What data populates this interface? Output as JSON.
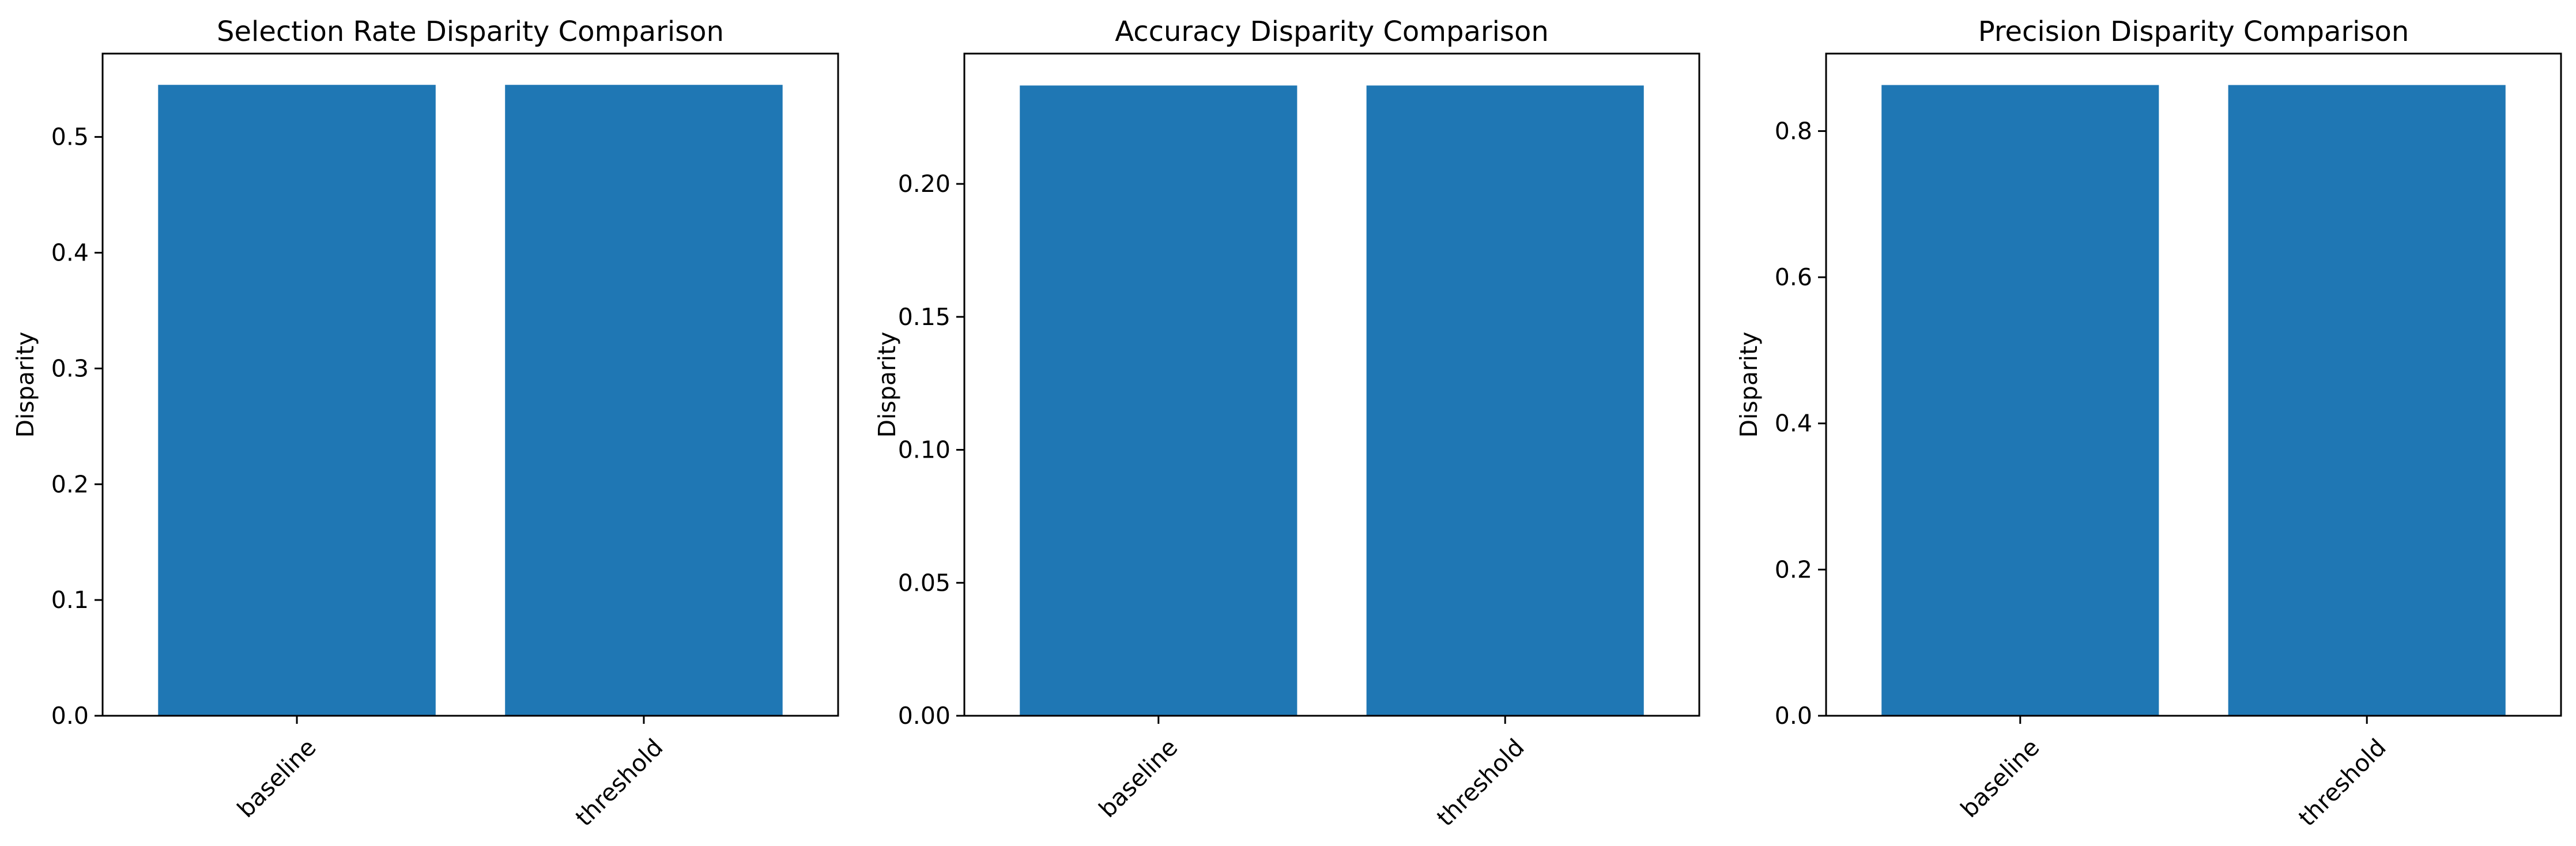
{
  "chart_data": [
    {
      "type": "bar",
      "title": "Selection Rate Disparity Comparison",
      "xlabel": "",
      "ylabel": "Disparity",
      "categories": [
        "baseline",
        "threshold"
      ],
      "values": [
        0.545,
        0.545
      ],
      "ylim": [
        0,
        0.572
      ],
      "yticks": [
        0.0,
        0.1,
        0.2,
        0.3,
        0.4,
        0.5
      ],
      "ytick_decimals": 1,
      "bar_color": "#1f77b4",
      "grid": false
    },
    {
      "type": "bar",
      "title": "Accuracy Disparity Comparison",
      "xlabel": "",
      "ylabel": "Disparity",
      "categories": [
        "baseline",
        "threshold"
      ],
      "values": [
        0.237,
        0.237
      ],
      "ylim": [
        0,
        0.249
      ],
      "yticks": [
        0.0,
        0.05,
        0.1,
        0.15,
        0.2
      ],
      "ytick_decimals": 2,
      "bar_color": "#1f77b4",
      "grid": false
    },
    {
      "type": "bar",
      "title": "Precision Disparity Comparison",
      "xlabel": "",
      "ylabel": "Disparity",
      "categories": [
        "baseline",
        "threshold"
      ],
      "values": [
        0.863,
        0.863
      ],
      "ylim": [
        0,
        0.906
      ],
      "yticks": [
        0.0,
        0.2,
        0.4,
        0.6,
        0.8
      ],
      "ytick_decimals": 1,
      "bar_color": "#1f77b4",
      "grid": false
    }
  ]
}
